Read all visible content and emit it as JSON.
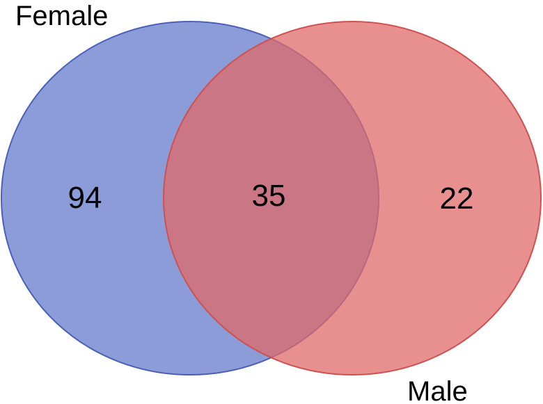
{
  "venn": {
    "sets": [
      {
        "key": "female",
        "label": "Female",
        "color": "#5a72c8",
        "stroke": "#4a5fb8"
      },
      {
        "key": "male",
        "label": "Male",
        "color": "#e06a6a",
        "stroke": "#d05050"
      }
    ],
    "counts": {
      "female_only": "94",
      "intersection": "35",
      "male_only": "22"
    }
  }
}
